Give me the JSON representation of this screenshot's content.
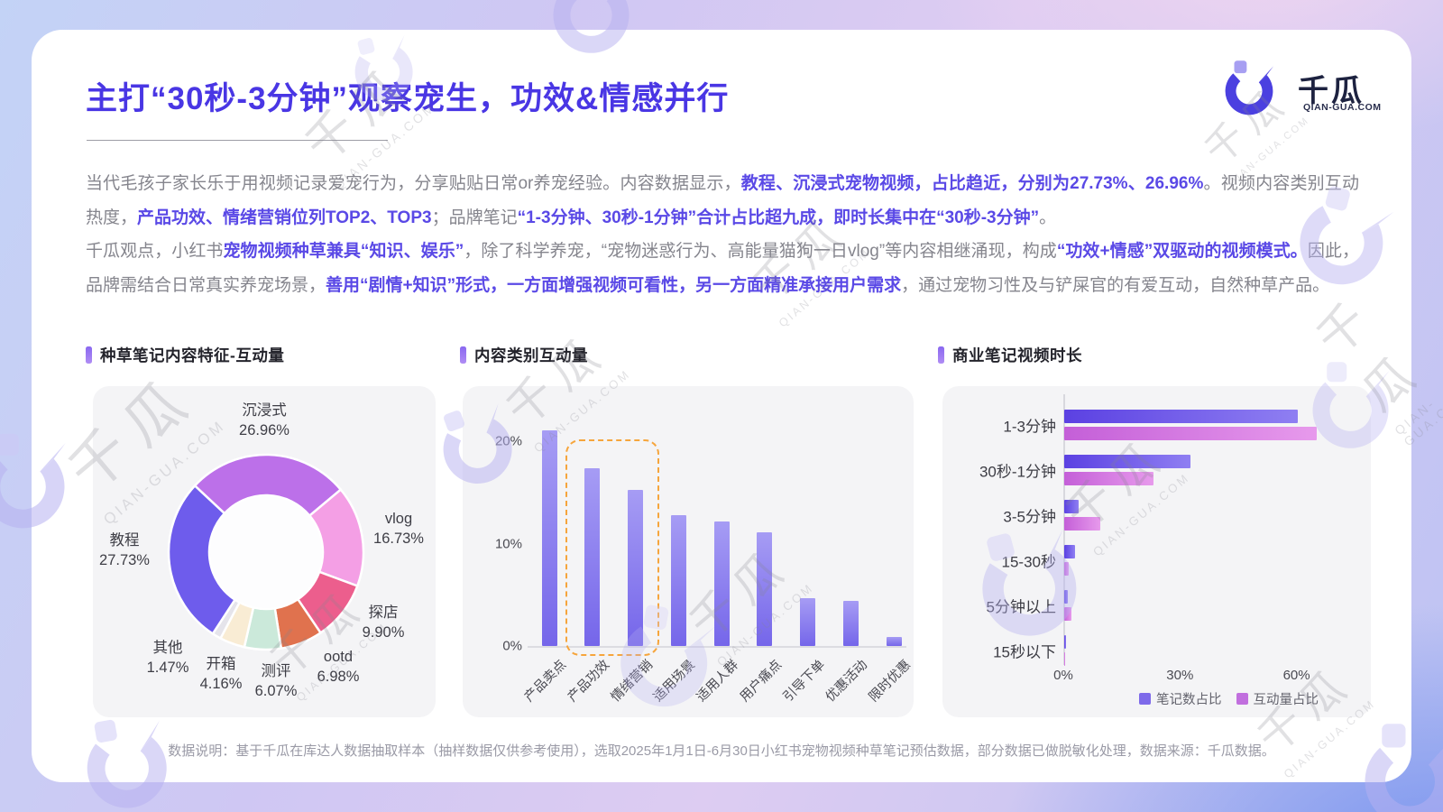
{
  "page": {
    "title": "主打“30秒-3分钟”观察宠生，功效&情感并行",
    "footer": "数据说明：基于千瓜在库达人数据抽取样本（抽样数据仅供参考使用），选取2025年1月1日-6月30日小红书宠物视频种草笔记预估数据，部分数据已做脱敏化处理，数据来源：千瓜数据。",
    "watermark": {
      "cn": "千瓜",
      "en": "QIAN-GUA.COM"
    }
  },
  "logo": {
    "name": "千瓜",
    "domain": "QIAN-GUA.COM"
  },
  "intro": {
    "segments": [
      {
        "text": "当代毛孩子家长乐于用视频记录爱宠行为，分享贴贴日常or养宠经验。内容数据显示，",
        "highlight": false
      },
      {
        "text": "教程、沉浸式宠物视频，占比趋近，分别为27.73%、26.96%",
        "highlight": true
      },
      {
        "text": "。视频内容类别互动热度，",
        "highlight": false
      },
      {
        "text": "产品功效、情绪营销位列TOP2、TOP3",
        "highlight": true
      },
      {
        "text": "；品牌笔记",
        "highlight": false
      },
      {
        "text": "“1-3分钟、30秒-1分钟”合计占比超九成，即时长集中在“30秒-3分钟”",
        "highlight": true
      },
      {
        "text": "。",
        "highlight": false
      }
    ]
  },
  "opinion": {
    "segments": [
      {
        "text": "千瓜观点，小红书",
        "highlight": false
      },
      {
        "text": "宠物视频种草兼具“知识、娱乐”",
        "highlight": true
      },
      {
        "text": "，除了科学养宠，“宠物迷惑行为、高能量猫狗一日vlog”等内容相继涌现，构成",
        "highlight": false
      },
      {
        "text": "“功效+情感”双驱动的视频模式。",
        "highlight": true
      },
      {
        "text": "因此，品牌需结合日常真实养宠场景，",
        "highlight": false
      },
      {
        "text": "善用“剧情+知识”形式，一方面增强视频可看性，另一方面精准承接用户需求",
        "highlight": true
      },
      {
        "text": "，通过宠物习性及与铲屎官的有爱互动，自然种草产品。",
        "highlight": false
      }
    ]
  },
  "chart_data": [
    {
      "id": "seeding-note-content-donut",
      "type": "pie",
      "donut": true,
      "title": "种草笔记内容特征-互动量",
      "categories": [
        "沉浸式",
        "vlog",
        "探店",
        "ootd",
        "测评",
        "开箱",
        "其他",
        "教程"
      ],
      "values": [
        26.96,
        16.73,
        9.9,
        6.98,
        6.07,
        4.16,
        1.47,
        27.73
      ],
      "value_labels": [
        "26.96%",
        "16.73%",
        "9.90%",
        "6.98%",
        "6.07%",
        "4.16%",
        "1.47%",
        "27.73%"
      ],
      "colors": [
        "#bc70e9",
        "#f49fe5",
        "#ec5e8d",
        "#e0724e",
        "#cbe9da",
        "#f9ecd4",
        "#e5e4eb",
        "#6e5cec"
      ],
      "start_angle_deg": -47,
      "legend_position": "none"
    },
    {
      "id": "content-category-engagement",
      "type": "bar",
      "title": "内容类别互动量",
      "categories": [
        "产品卖点",
        "产品功效",
        "情绪营销",
        "适用场景",
        "适用人群",
        "用户痛点",
        "引导下单",
        "优惠活动",
        "限时优惠"
      ],
      "values": [
        21.1,
        17.4,
        15.2,
        12.8,
        12.2,
        11.1,
        4.7,
        4.4,
        0.9
      ],
      "yticks": [
        {
          "label": "20%",
          "value": 20
        },
        {
          "label": "10%",
          "value": 10
        },
        {
          "label": "0%",
          "value": 0
        }
      ],
      "ylim": [
        0,
        23.5
      ],
      "grid": false,
      "highlight_box_categories": [
        "产品功效",
        "情绪营销"
      ],
      "bar_color": "#7f70ee",
      "highlight_box_color": "#f6a53c"
    },
    {
      "id": "commercial-note-video-duration",
      "type": "bar-horizontal",
      "title": "商业笔记视频时长",
      "categories": [
        "1-3分钟",
        "30秒-1分钟",
        "3-5分钟",
        "15-30秒",
        "5分钟以上",
        "15秒以下"
      ],
      "series": [
        {
          "name": "笔记数占比",
          "color": "#7e6aea",
          "values": [
            60,
            32.5,
            3.8,
            2.8,
            0.9,
            0.4
          ]
        },
        {
          "name": "互动量占比",
          "color": "#c16fde",
          "values": [
            65,
            23,
            9.2,
            1.2,
            1.8,
            0.1
          ]
        }
      ],
      "xticks": [
        {
          "label": "0%",
          "value": 0
        },
        {
          "label": "30%",
          "value": 30
        },
        {
          "label": "60%",
          "value": 60
        }
      ],
      "xlim": [
        0,
        70
      ],
      "grid": false,
      "legend_position": "bottom-right"
    }
  ]
}
